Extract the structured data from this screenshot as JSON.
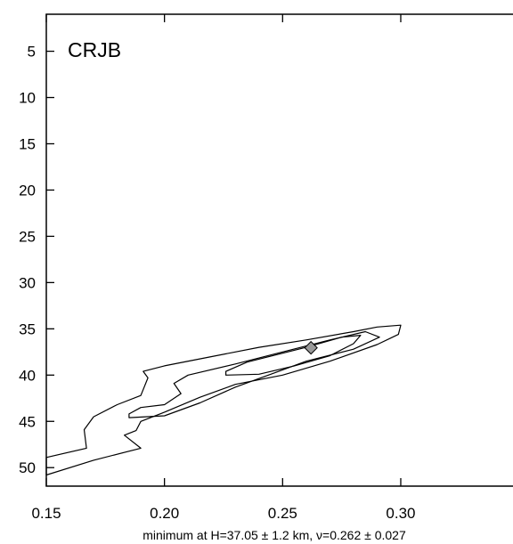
{
  "chart_data": {
    "type": "contour",
    "station": "CRJB",
    "caption": "minimum at H=37.05 ± 1.2 km, ν=0.262 ± 0.027",
    "xlim": [
      0.15,
      0.3475
    ],
    "ylim": [
      52,
      1
    ],
    "x_ticks": [
      0.15,
      0.2,
      0.25,
      0.3
    ],
    "x_tick_labels": [
      "0.15",
      "0.20",
      "0.25",
      "0.30"
    ],
    "y_ticks": [
      5,
      10,
      15,
      20,
      25,
      30,
      35,
      40,
      45,
      50
    ],
    "y_tick_labels": [
      "5",
      "10",
      "15",
      "20",
      "25",
      "30",
      "35",
      "40",
      "45",
      "50"
    ],
    "minimum": {
      "x": 0.262,
      "y": 37.05
    },
    "contours": [
      {
        "name": "outer",
        "points": [
          [
            0.15,
            48.9
          ],
          [
            0.167,
            47.9
          ],
          [
            0.166,
            45.9
          ],
          [
            0.17,
            44.5
          ],
          [
            0.18,
            43.2
          ],
          [
            0.19,
            42.2
          ],
          [
            0.193,
            40.3
          ],
          [
            0.191,
            39.6
          ],
          [
            0.2,
            39.0
          ],
          [
            0.22,
            38.0
          ],
          [
            0.24,
            37.0
          ],
          [
            0.26,
            36.2
          ],
          [
            0.28,
            35.3
          ],
          [
            0.29,
            34.8
          ],
          [
            0.3,
            34.6
          ],
          [
            0.299,
            35.6
          ],
          [
            0.29,
            36.7
          ],
          [
            0.27,
            38.5
          ],
          [
            0.25,
            40.0
          ],
          [
            0.23,
            41.0
          ],
          [
            0.215,
            42.4
          ],
          [
            0.2,
            44.0
          ],
          [
            0.19,
            45.0
          ],
          [
            0.188,
            46.0
          ],
          [
            0.183,
            46.5
          ],
          [
            0.19,
            47.9
          ],
          [
            0.17,
            49.2
          ],
          [
            0.15,
            50.8
          ]
        ]
      },
      {
        "name": "middle",
        "points": [
          [
            0.185,
            44.2
          ],
          [
            0.19,
            43.5
          ],
          [
            0.2,
            43.2
          ],
          [
            0.207,
            42.0
          ],
          [
            0.204,
            40.9
          ],
          [
            0.21,
            40.0
          ],
          [
            0.23,
            38.8
          ],
          [
            0.25,
            37.5
          ],
          [
            0.27,
            36.2
          ],
          [
            0.285,
            35.3
          ],
          [
            0.291,
            35.9
          ],
          [
            0.28,
            37.2
          ],
          [
            0.26,
            38.5
          ],
          [
            0.245,
            39.9
          ],
          [
            0.23,
            41.3
          ],
          [
            0.215,
            43.0
          ],
          [
            0.2,
            44.4
          ],
          [
            0.185,
            44.6
          ]
        ]
      },
      {
        "name": "inner",
        "points": [
          [
            0.226,
            39.6
          ],
          [
            0.235,
            38.6
          ],
          [
            0.26,
            37.0
          ],
          [
            0.275,
            35.9
          ],
          [
            0.283,
            35.7
          ],
          [
            0.28,
            36.6
          ],
          [
            0.27,
            37.9
          ],
          [
            0.255,
            39.0
          ],
          [
            0.24,
            39.9
          ],
          [
            0.226,
            40.0
          ]
        ]
      }
    ]
  }
}
